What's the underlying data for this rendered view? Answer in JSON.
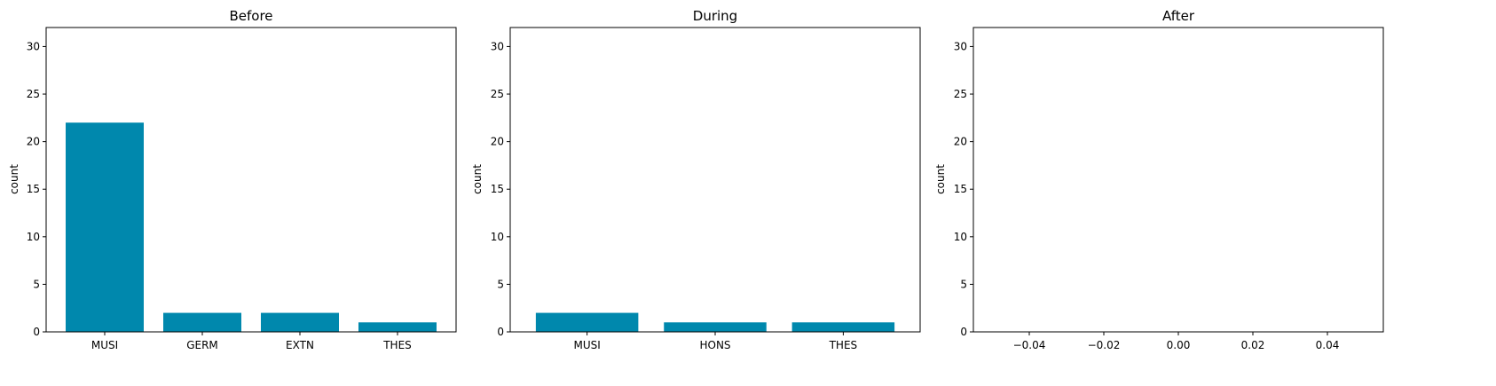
{
  "chart_data": [
    {
      "type": "bar",
      "title": "Before",
      "ylabel": "count",
      "xlabel": "",
      "categories": [
        "MUSI",
        "GERM",
        "EXTN",
        "THES"
      ],
      "values": [
        22,
        2,
        2,
        1
      ],
      "ylim": [
        0,
        32
      ],
      "yticks": [
        0,
        5,
        10,
        15,
        20,
        25,
        30
      ],
      "grid": false,
      "color": "#0088ad"
    },
    {
      "type": "bar",
      "title": "During",
      "ylabel": "count",
      "xlabel": "",
      "categories": [
        "MUSI",
        "HONS",
        "THES"
      ],
      "values": [
        2,
        1,
        1
      ],
      "ylim": [
        0,
        32
      ],
      "yticks": [
        0,
        5,
        10,
        15,
        20,
        25,
        30
      ],
      "grid": false,
      "color": "#0088ad"
    },
    {
      "type": "bar",
      "title": "After",
      "ylabel": "count",
      "xlabel": "",
      "categories": [],
      "values": [],
      "ylim": [
        0,
        32
      ],
      "xlim": [
        -0.055,
        0.055
      ],
      "yticks": [
        0,
        5,
        10,
        15,
        20,
        25,
        30
      ],
      "xticks": [
        "−0.04",
        "−0.02",
        "0.00",
        "0.02",
        "0.04"
      ],
      "xtick_values": [
        -0.04,
        -0.02,
        0.0,
        0.02,
        0.04
      ],
      "grid": false,
      "color": "#0088ad"
    }
  ]
}
